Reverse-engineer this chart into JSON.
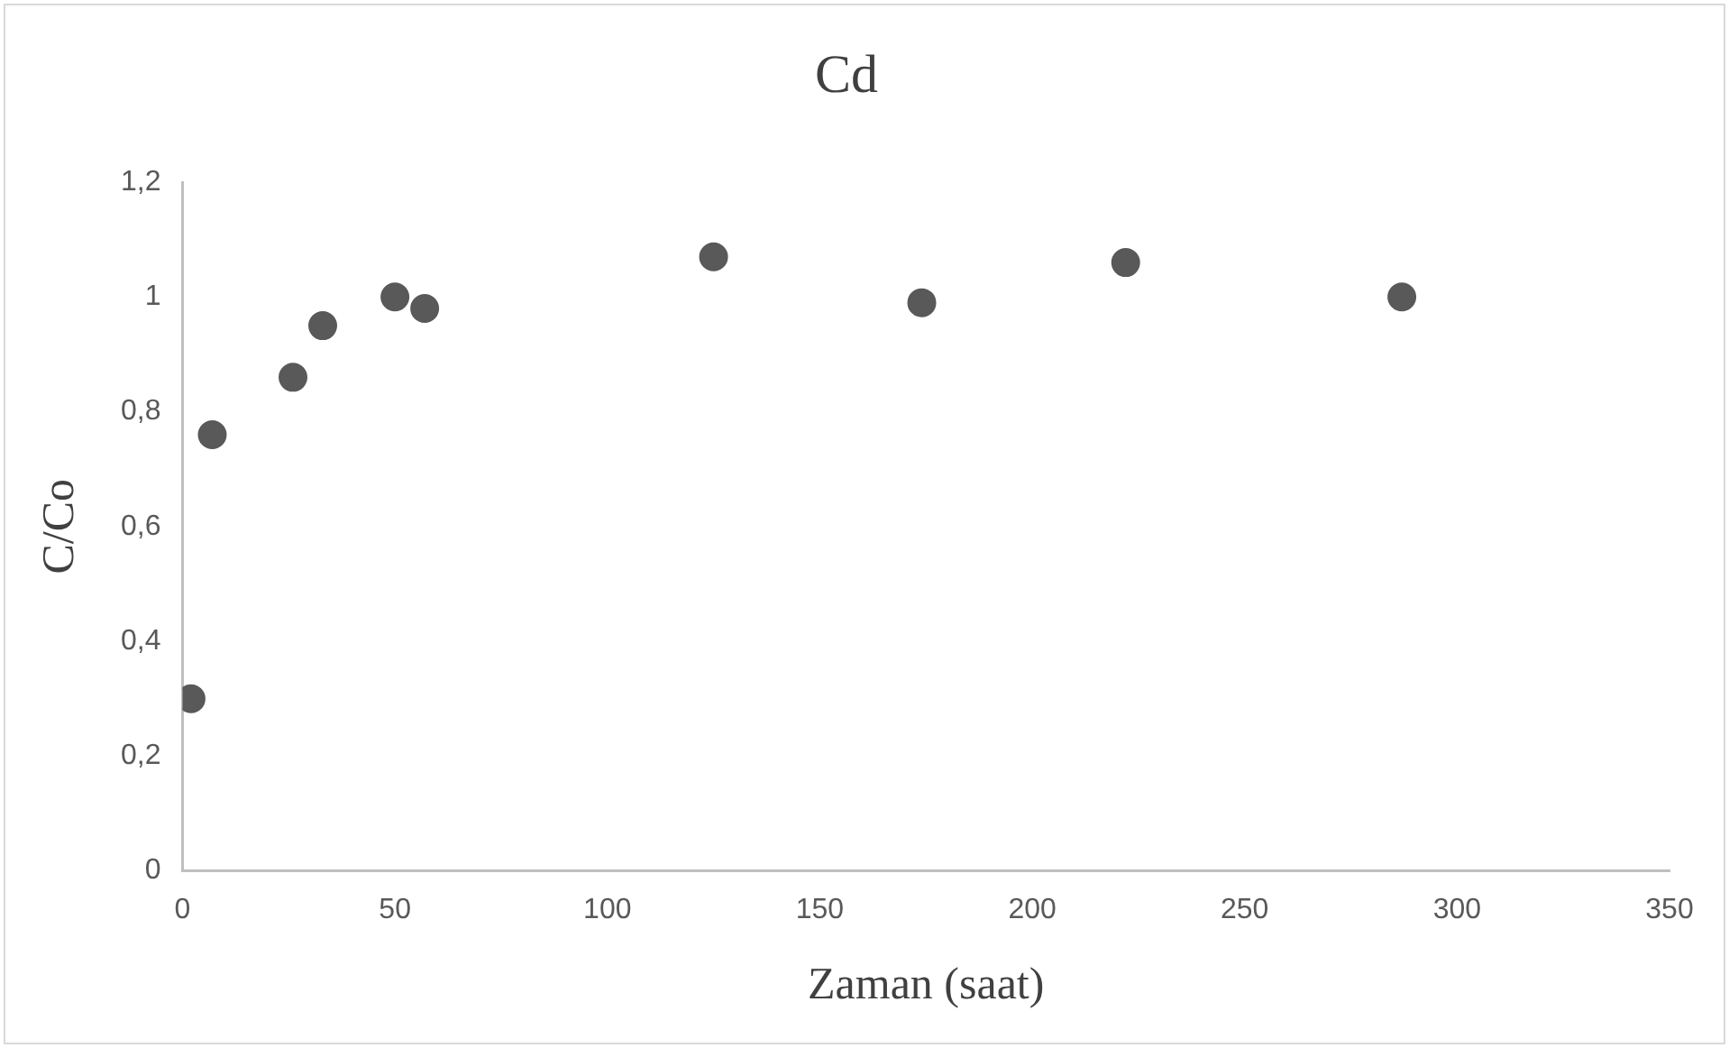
{
  "chart_data": {
    "type": "scatter",
    "title": "Cd",
    "xlabel": "Zaman (saat)",
    "ylabel": "C/Co",
    "x": [
      2,
      7,
      26,
      33,
      50,
      57,
      125,
      174,
      222,
      287
    ],
    "series": [
      {
        "color": "#595959",
        "values": [
          0.3,
          0.76,
          0.86,
          0.95,
          1.0,
          0.98,
          1.07,
          0.99,
          1.06,
          1.0
        ]
      }
    ],
    "xlim": [
      0,
      350
    ],
    "xticks": [
      0,
      50,
      100,
      150,
      200,
      250,
      300,
      350
    ],
    "ylim": [
      0,
      1.2
    ],
    "yticks": [
      {
        "value": 0,
        "label": "0"
      },
      {
        "value": 0.2,
        "label": "0,2"
      },
      {
        "value": 0.4,
        "label": "0,4"
      },
      {
        "value": 0.6,
        "label": "0,6"
      },
      {
        "value": 0.8,
        "label": "0,8"
      },
      {
        "value": 1,
        "label": "1"
      },
      {
        "value": 1.2,
        "label": "1,2"
      }
    ],
    "grid": false,
    "legend": false,
    "marker": "circle"
  }
}
